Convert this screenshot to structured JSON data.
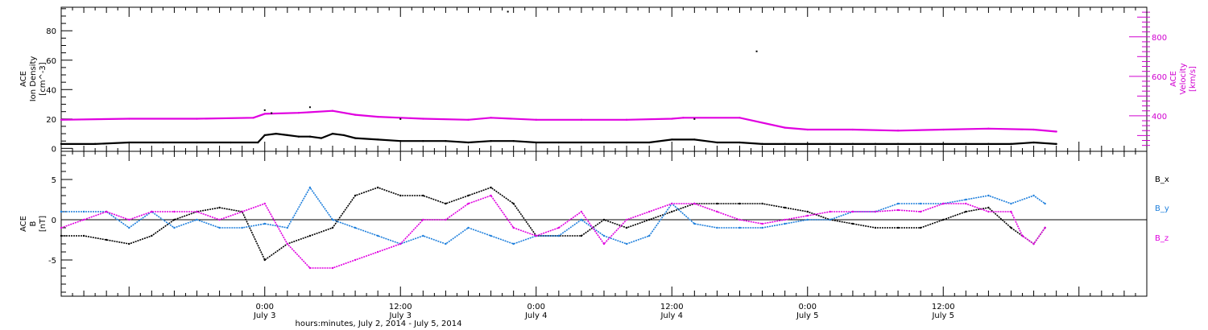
{
  "colors": {
    "black": "#000000",
    "magenta": "#e000e0",
    "blue": "#1e7fdc"
  },
  "x_axis": {
    "title": "hours:minutes, July  2, 2014 - July  5, 2014",
    "range_hours": [
      -18,
      78
    ],
    "ticks": [
      {
        "hours": 0,
        "time": "0:00",
        "day": "July 3"
      },
      {
        "hours": 12,
        "time": "12:00",
        "day": "July 3"
      },
      {
        "hours": 24,
        "time": "0:00",
        "day": "July 4"
      },
      {
        "hours": 36,
        "time": "12:00",
        "day": "July 4"
      },
      {
        "hours": 48,
        "time": "0:00",
        "day": "July 5"
      },
      {
        "hours": 60,
        "time": "12:00",
        "day": "July 5"
      }
    ]
  },
  "chart_data": [
    {
      "type": "scatter",
      "panel": "top",
      "ylabel_left": {
        "line1": "ACE",
        "line2": "Ion Density",
        "line3": "[cm^-3]"
      },
      "ylabel_right": {
        "line1": "ACE",
        "line2": "Velocity",
        "line3": "[km/s]"
      },
      "ylim_left": [
        -2,
        96
      ],
      "left_ticks": [
        0,
        20,
        40,
        60,
        80
      ],
      "ylim_right": [
        220,
        950
      ],
      "right_ticks": [
        400,
        600,
        800
      ],
      "series": [
        {
          "key": "density",
          "axis": "left",
          "color": "#000000",
          "x": [
            -18,
            -15,
            -12,
            -9,
            -6,
            -3,
            -0.6,
            0,
            1,
            2,
            3,
            4,
            5,
            6,
            7,
            8,
            10,
            12,
            14,
            16,
            18,
            20,
            22,
            24,
            26,
            28,
            30,
            32,
            34,
            36,
            38,
            40,
            42,
            44,
            46,
            48,
            50,
            52,
            54,
            56,
            58,
            60,
            62,
            64,
            66,
            68,
            70
          ],
          "y": [
            3,
            3,
            4,
            4,
            4,
            4,
            4,
            9,
            10,
            9,
            8,
            8,
            7,
            10,
            9,
            7,
            6,
            5,
            5,
            5,
            4,
            5,
            5,
            4,
            4,
            4,
            4,
            4,
            4,
            6,
            6,
            4,
            4,
            3,
            3,
            3,
            3,
            3,
            3,
            3,
            3,
            3,
            3,
            3,
            3,
            4,
            3
          ]
        },
        {
          "key": "velocity",
          "axis": "right",
          "color": "#e000e0",
          "x": [
            -18,
            -12,
            -6,
            -1,
            0,
            3,
            6,
            8,
            10,
            14,
            18,
            20,
            24,
            28,
            32,
            36,
            37,
            42,
            46,
            48,
            52,
            56,
            60,
            64,
            68,
            70
          ],
          "y": [
            380,
            385,
            385,
            390,
            410,
            415,
            425,
            405,
            395,
            385,
            380,
            390,
            380,
            380,
            380,
            385,
            390,
            390,
            340,
            330,
            330,
            325,
            330,
            335,
            330,
            320
          ]
        }
      ],
      "outlier_points": [
        {
          "x": 0,
          "y": 26
        },
        {
          "x": 0.6,
          "y": 24
        },
        {
          "x": 4,
          "y": 28
        },
        {
          "x": 12,
          "y": 20
        },
        {
          "x": 21.5,
          "y": 93
        },
        {
          "x": 38,
          "y": 20
        },
        {
          "x": 43.5,
          "y": 66
        }
      ]
    },
    {
      "type": "line",
      "panel": "bottom",
      "ylabel_left": {
        "line1": "ACE",
        "line2": "B",
        "line3": "[nT]"
      },
      "ylim": [
        -9.5,
        8.5
      ],
      "ticks": [
        -5,
        0,
        5
      ],
      "legend": [
        "B_x",
        "B_y",
        "B_z"
      ],
      "legend_placement": "right",
      "series": [
        {
          "key": "bx",
          "name": "B_x",
          "color": "#000000",
          "x": [
            -18,
            -16,
            -14,
            -12,
            -10,
            -8,
            -6,
            -4,
            -2,
            0,
            2,
            4,
            6,
            8,
            10,
            12,
            14,
            16,
            18,
            20,
            22,
            24,
            26,
            28,
            30,
            32,
            34,
            36,
            38,
            40,
            42,
            44,
            46,
            48,
            50,
            52,
            54,
            56,
            58,
            60,
            62,
            64,
            66,
            67,
            68,
            69
          ],
          "y": [
            -2,
            -2,
            -2.5,
            -3,
            -2,
            0,
            1,
            1.5,
            1,
            -5,
            -3,
            -2,
            -1,
            3,
            4,
            3,
            3,
            2,
            3,
            4,
            2,
            -2,
            -2,
            -2,
            0,
            -1,
            0,
            1,
            2,
            2,
            2,
            2,
            1.5,
            1,
            0,
            -0.5,
            -1,
            -1,
            -1,
            0,
            1,
            1.5,
            -1,
            -2,
            -3,
            -1
          ]
        },
        {
          "key": "by",
          "name": "B_y",
          "color": "#1e7fdc",
          "x": [
            -18,
            -16,
            -14,
            -12,
            -10,
            -8,
            -6,
            -4,
            -2,
            0,
            2,
            4,
            6,
            8,
            10,
            12,
            14,
            16,
            18,
            20,
            22,
            24,
            26,
            28,
            30,
            32,
            34,
            36,
            38,
            40,
            42,
            44,
            46,
            48,
            50,
            52,
            54,
            56,
            58,
            60,
            62,
            64,
            66,
            68,
            69
          ],
          "y": [
            1,
            1,
            1,
            -1,
            1,
            -1,
            0,
            -1,
            -1,
            -0.5,
            -1,
            4,
            0,
            -1,
            -2,
            -3,
            -2,
            -3,
            -1,
            -2,
            -3,
            -2,
            -2,
            0,
            -2,
            -3,
            -2,
            2,
            -0.5,
            -1,
            -1,
            -1,
            -0.5,
            0,
            0,
            1,
            1,
            2,
            2,
            2,
            2.5,
            3,
            2,
            3,
            2
          ]
        },
        {
          "key": "bz",
          "name": "B_z",
          "color": "#e000e0",
          "x": [
            -18,
            -16,
            -14,
            -12,
            -10,
            -8,
            -6,
            -4,
            -2,
            0,
            2,
            4,
            6,
            8,
            10,
            12,
            14,
            16,
            18,
            20,
            22,
            24,
            26,
            28,
            30,
            32,
            34,
            36,
            38,
            40,
            42,
            44,
            46,
            48,
            50,
            52,
            54,
            56,
            58,
            60,
            62,
            64,
            66,
            67,
            68,
            69
          ],
          "y": [
            -1,
            0,
            1,
            0,
            1,
            1,
            1,
            0,
            1,
            2,
            -3,
            -6,
            -6,
            -5,
            -4,
            -3,
            0,
            0,
            2,
            3,
            -1,
            -2,
            -1,
            1,
            -3,
            0,
            1,
            2,
            2,
            1,
            0,
            -0.5,
            0,
            0.5,
            1,
            1,
            1,
            1.2,
            1,
            2,
            2,
            1,
            1,
            -2,
            -3,
            -1
          ]
        }
      ]
    }
  ]
}
